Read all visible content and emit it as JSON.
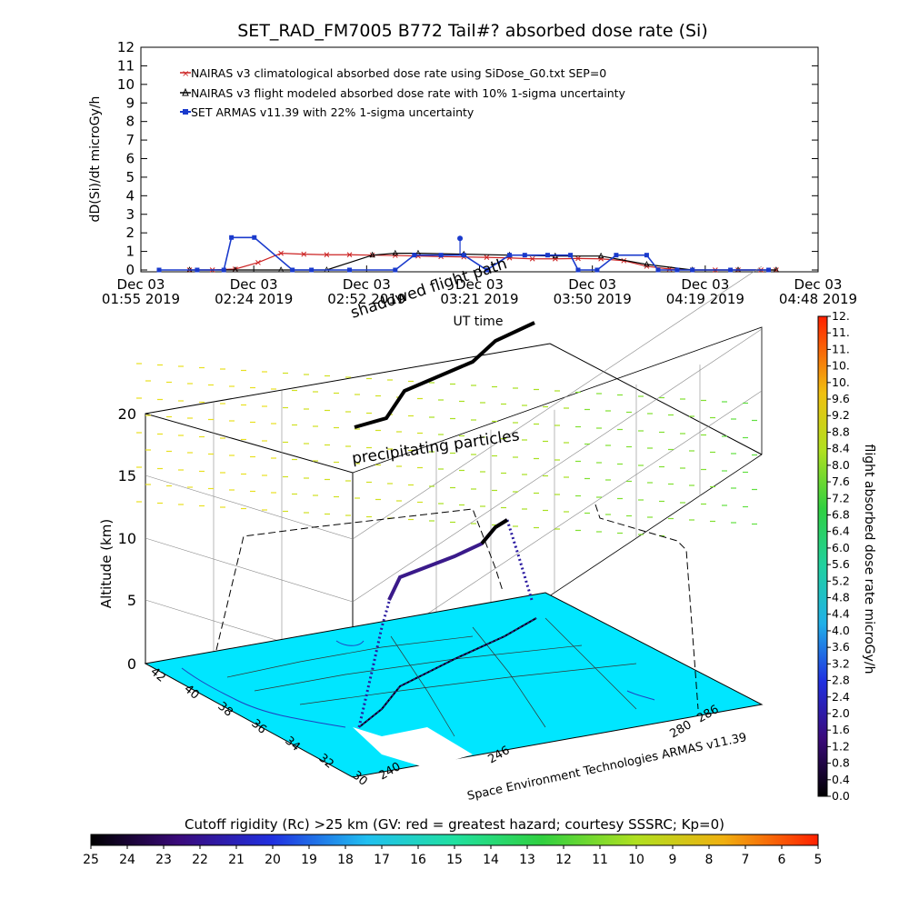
{
  "chart_data": [
    {
      "type": "line",
      "title": "SET_RAD_FM7005  B772 Tail#? absorbed dose rate (Si)",
      "xlabel": "UT time",
      "ylabel": "dD(Si)/dt microGy/h",
      "ylim": [
        0,
        12
      ],
      "y_ticks": [
        "0",
        "1",
        "2",
        "3",
        "4",
        "5",
        "6",
        "7",
        "8",
        "9",
        "10",
        "11",
        "12"
      ],
      "x_ticks": [
        {
          "date": "Dec 03",
          "time": "01:55 2019"
        },
        {
          "date": "Dec 03",
          "time": "02:24 2019"
        },
        {
          "date": "Dec 03",
          "time": "02:52 2019"
        },
        {
          "date": "Dec 03",
          "time": "03:21 2019"
        },
        {
          "date": "Dec 03",
          "time": "03:50 2019"
        },
        {
          "date": "Dec 03",
          "time": "04:19 2019"
        },
        {
          "date": "Dec 03",
          "time": "04:48 2019"
        }
      ],
      "x_unit": "minutes after 01:55 UT",
      "xlim": [
        0,
        173
      ],
      "legend": {
        "placement": "top-left",
        "entries": [
          "NAIRAS v3 climatological absorbed dose rate using SiDose_G0.txt SEP=0",
          "NAIRAS v3 flight modeled absorbed dose rate with 10% 1-sigma uncertainty",
          "SET ARMAS v11.39 with 22% 1-sigma uncertainty"
        ]
      },
      "series": [
        {
          "color": "#cc2222",
          "marker": "x",
          "x": [
            8,
            14,
            20,
            26,
            32,
            38,
            44,
            50,
            56,
            62,
            68,
            74,
            80,
            86,
            92,
            98,
            104,
            110,
            116,
            122,
            128,
            134,
            140,
            146,
            152,
            158,
            162
          ],
          "values": [
            0,
            0,
            0.05,
            0.4,
            0.9,
            0.85,
            0.82,
            0.82,
            0.8,
            0.78,
            0.75,
            0.72,
            0.7,
            0.68,
            0.65,
            0.6,
            0.6,
            0.62,
            0.6,
            0.5,
            0.2,
            0.05,
            0,
            0,
            0,
            0,
            0
          ]
        },
        {
          "color": "#000000",
          "marker": "triangle",
          "x": [
            8,
            20,
            32,
            44,
            56,
            62,
            68,
            80,
            92,
            104,
            116,
            128,
            140,
            152,
            162
          ],
          "values": [
            0,
            0,
            0,
            0,
            0.8,
            0.9,
            0.9,
            0.85,
            0.8,
            0.75,
            0.75,
            0.3,
            0,
            0,
            0
          ]
        },
        {
          "color": "#1a3acc",
          "marker": "square",
          "x": [
            0,
            10,
            17,
            19,
            25,
            35,
            40,
            50,
            62,
            67,
            74,
            80,
            86,
            92,
            96,
            102,
            108,
            110,
            115,
            120,
            128,
            131,
            136,
            140,
            150,
            160
          ],
          "values": [
            0,
            0,
            0,
            1.75,
            1.75,
            0,
            0,
            0,
            0,
            0.8,
            0.8,
            0.8,
            0,
            0.8,
            0.8,
            0.8,
            0.8,
            0,
            0,
            0.8,
            0.8,
            0,
            0,
            0,
            0,
            0
          ]
        }
      ],
      "annotations": [
        {
          "text": "1.7",
          "note": "isolated marker near x=79"
        }
      ]
    },
    {
      "type": "scatter",
      "subtype": "3d flight path over map",
      "ylabel": "Altitude (km)",
      "z_ticks": [
        "0",
        "5",
        "10",
        "15",
        "20"
      ],
      "lat_ticks": [
        "42",
        "40",
        "38",
        "36",
        "34",
        "32",
        "30"
      ],
      "lon_ticks": [
        "240",
        "246",
        "280",
        "286"
      ],
      "annotations": [
        "shadowed flight path",
        "precipitating particles"
      ],
      "credit": "Space Environment Technologies ARMAS v11.39",
      "colorbar_right": {
        "label": "flight absorbed dose rate microGy/h",
        "ticks": [
          "0.0",
          "0.4",
          "0.8",
          "1.2",
          "1.6",
          "2.0",
          "2.4",
          "2.8",
          "3.2",
          "3.6",
          "4.0",
          "4.4",
          "4.8",
          "5.2",
          "5.6",
          "6.0",
          "6.4",
          "6.8",
          "7.2",
          "7.6",
          "8.0",
          "8.4",
          "8.8",
          "9.2",
          "9.6",
          "10.",
          "10.",
          "11.",
          "11.",
          "12."
        ]
      },
      "colorbar_bottom": {
        "label": "Cutoff rigidity (Rc) >25 km (GV: red = greatest hazard; courtesy SSSRC; Kp=0)",
        "ticks": [
          "25",
          "24",
          "23",
          "22",
          "21",
          "20",
          "19",
          "18",
          "17",
          "16",
          "15",
          "14",
          "13",
          "12",
          "11",
          "10",
          "9",
          "8",
          "7",
          "6",
          "5"
        ]
      }
    }
  ]
}
